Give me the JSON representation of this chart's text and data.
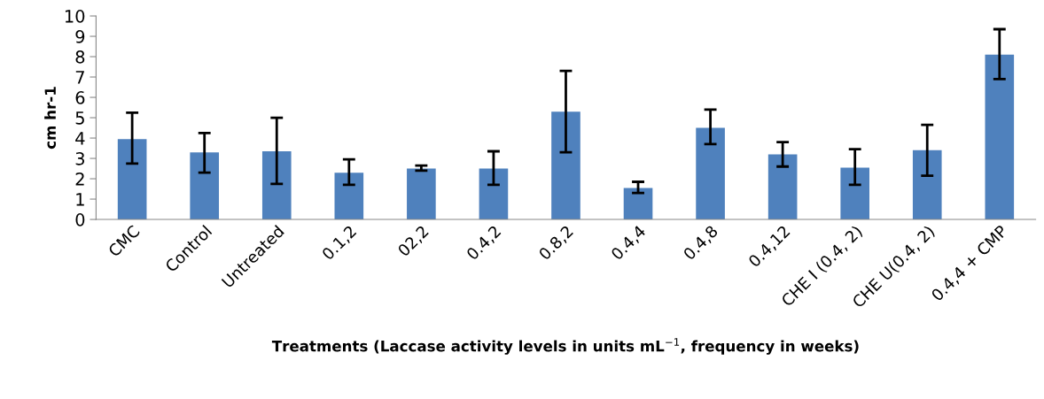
{
  "chart_data": {
    "type": "bar",
    "xlabel": "Treatments (Laccase activity levels in units mL$^{−1}$, frequency in weeks)",
    "ylabel": "cm hr-1",
    "categories": [
      "CMC",
      "Control",
      "Untreated",
      "0.1,2",
      "02,2",
      "0.4,2",
      "0.8,2",
      "0.4,4",
      "0.4,8",
      "0.4,12",
      "CHE I (0.4, 2)",
      "CHE U(0.4, 2)",
      "0.4,4 + CMP"
    ],
    "values": [
      3.95,
      3.3,
      3.35,
      2.3,
      2.5,
      2.5,
      5.3,
      1.55,
      4.5,
      3.2,
      2.55,
      3.4,
      8.1
    ],
    "errors": [
      [
        2.75,
        5.25
      ],
      [
        2.3,
        4.25
      ],
      [
        1.75,
        5.0
      ],
      [
        1.7,
        2.95
      ],
      [
        2.4,
        2.65
      ],
      [
        1.7,
        3.35
      ],
      [
        3.3,
        7.3
      ],
      [
        1.3,
        1.85
      ],
      [
        3.7,
        5.4
      ],
      [
        2.6,
        3.8
      ],
      [
        1.7,
        3.45
      ],
      [
        2.15,
        4.65
      ],
      [
        6.9,
        9.35
      ]
    ],
    "color": "#4f81bd",
    "ylim": [
      0,
      10
    ],
    "yticks": [
      0,
      1,
      2,
      3,
      4,
      5,
      6,
      7,
      8,
      9,
      10
    ],
    "grid": false,
    "legend": false
  }
}
